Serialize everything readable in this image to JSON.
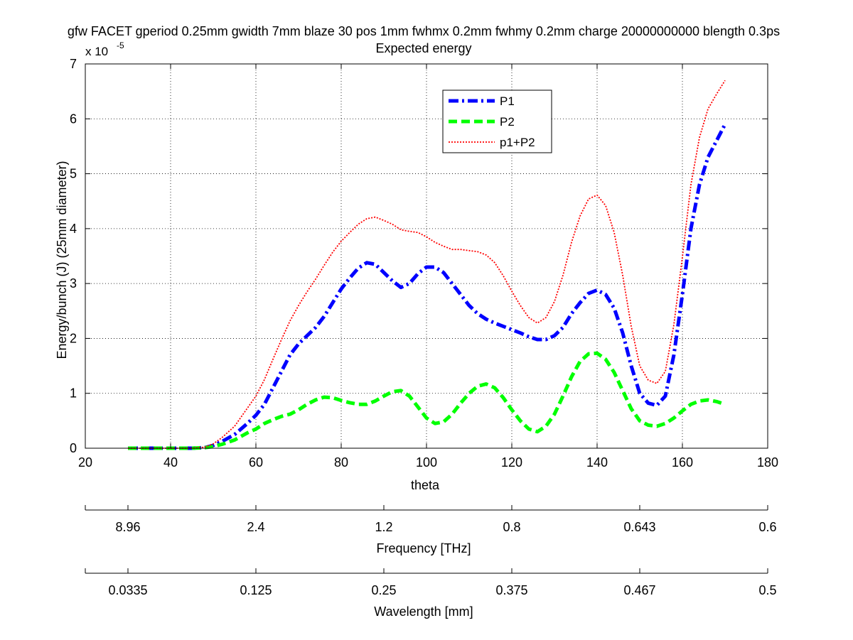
{
  "chart_data": {
    "type": "line",
    "title": "gfw FACET gperiod 0.25mm gwidth 7mm blaze 30 pos 1mm fwhmx 0.2mm fwhmy 0.2mm charge 20000000000 blength 0.3ps",
    "subtitle": "Expected energy",
    "xlabel": "theta",
    "ylabel": "Energy/bunch (J) (25mm diameter)",
    "y_exponent_label": "x 10",
    "y_exponent_power": "-5",
    "xlim": [
      20,
      180
    ],
    "ylim": [
      0,
      7
    ],
    "x_ticks": [
      "20",
      "40",
      "60",
      "80",
      "100",
      "120",
      "140",
      "160",
      "180"
    ],
    "y_ticks": [
      "0",
      "1",
      "2",
      "3",
      "4",
      "5",
      "6",
      "7"
    ],
    "grid": true,
    "legend_position": "top-center",
    "secondary_axes": [
      {
        "label": "Frequency [THz]",
        "tick_positions_theta": [
          20,
          30,
          60,
          90,
          120,
          150,
          180
        ],
        "tick_labels": [
          "",
          "8.96",
          "2.4",
          "1.2",
          "0.8",
          "0.643",
          "0.6"
        ]
      },
      {
        "label": "Wavelength [mm]",
        "tick_positions_theta": [
          20,
          30,
          60,
          90,
          120,
          150,
          180
        ],
        "tick_labels": [
          "",
          "0.0335",
          "0.125",
          "0.25",
          "0.375",
          "0.467",
          "0.5"
        ]
      }
    ],
    "x": [
      30,
      35,
      40,
      45,
      48,
      50,
      52,
      55,
      58,
      60,
      62,
      64,
      66,
      68,
      70,
      72,
      74,
      76,
      78,
      80,
      82,
      84,
      86,
      88,
      90,
      92,
      94,
      96,
      98,
      100,
      102,
      104,
      106,
      108,
      110,
      112,
      114,
      116,
      118,
      120,
      122,
      124,
      126,
      128,
      130,
      132,
      134,
      136,
      138,
      140,
      142,
      144,
      146,
      148,
      150,
      152,
      154,
      156,
      158,
      160,
      162,
      164,
      166,
      168,
      170
    ],
    "series": [
      {
        "name": "P1",
        "color": "#0000ff",
        "style": "dashdot",
        "values": [
          0,
          0,
          0,
          0,
          0.01,
          0.05,
          0.12,
          0.25,
          0.45,
          0.6,
          0.8,
          1.1,
          1.4,
          1.7,
          1.9,
          2.05,
          2.2,
          2.4,
          2.65,
          2.9,
          3.1,
          3.28,
          3.38,
          3.35,
          3.2,
          3.05,
          2.93,
          3.0,
          3.18,
          3.3,
          3.3,
          3.2,
          3.0,
          2.8,
          2.6,
          2.45,
          2.35,
          2.28,
          2.22,
          2.16,
          2.1,
          2.03,
          1.98,
          1.98,
          2.05,
          2.2,
          2.45,
          2.65,
          2.82,
          2.88,
          2.8,
          2.55,
          2.1,
          1.5,
          1.0,
          0.82,
          0.78,
          0.95,
          1.7,
          2.8,
          4.0,
          4.8,
          5.3,
          5.6,
          5.9
        ]
      },
      {
        "name": "P2",
        "color": "#00ff00",
        "style": "dashed",
        "values": [
          0,
          0,
          0,
          0,
          0.01,
          0.03,
          0.07,
          0.15,
          0.28,
          0.35,
          0.45,
          0.52,
          0.58,
          0.62,
          0.7,
          0.8,
          0.88,
          0.93,
          0.92,
          0.87,
          0.83,
          0.8,
          0.8,
          0.86,
          0.95,
          1.03,
          1.05,
          0.95,
          0.75,
          0.55,
          0.45,
          0.48,
          0.62,
          0.82,
          1.0,
          1.13,
          1.17,
          1.1,
          0.92,
          0.7,
          0.5,
          0.35,
          0.3,
          0.4,
          0.62,
          0.95,
          1.3,
          1.58,
          1.72,
          1.73,
          1.62,
          1.38,
          1.05,
          0.72,
          0.5,
          0.42,
          0.4,
          0.45,
          0.55,
          0.68,
          0.8,
          0.86,
          0.88,
          0.85,
          0.8
        ]
      },
      {
        "name": "p1+P2",
        "color": "#ff0000",
        "style": "dotted",
        "values": [
          0,
          0,
          0,
          0,
          0.02,
          0.08,
          0.19,
          0.4,
          0.73,
          0.95,
          1.25,
          1.62,
          1.98,
          2.32,
          2.6,
          2.85,
          3.08,
          3.33,
          3.57,
          3.77,
          3.93,
          4.08,
          4.18,
          4.21,
          4.15,
          4.08,
          3.98,
          3.95,
          3.93,
          3.85,
          3.75,
          3.68,
          3.62,
          3.62,
          3.6,
          3.58,
          3.52,
          3.38,
          3.14,
          2.86,
          2.6,
          2.38,
          2.28,
          2.38,
          2.67,
          3.15,
          3.75,
          4.23,
          4.54,
          4.61,
          4.42,
          3.93,
          3.15,
          2.22,
          1.5,
          1.24,
          1.18,
          1.4,
          2.25,
          3.48,
          4.8,
          5.66,
          6.18,
          6.45,
          6.7
        ]
      }
    ]
  }
}
